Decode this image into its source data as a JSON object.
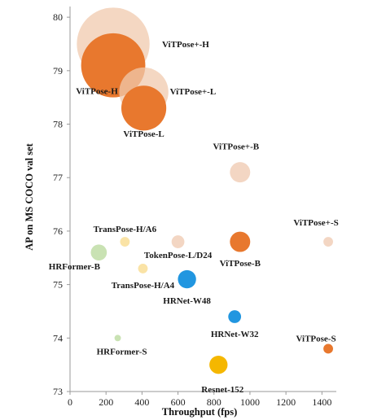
{
  "chart_data": {
    "type": "scatter",
    "xlabel": "Throughput (fps)",
    "ylabel": "AP on MS COCO val set",
    "xlim": [
      0,
      1480
    ],
    "ylim": [
      73,
      80.2
    ],
    "x_ticks": [
      0,
      200,
      400,
      600,
      800,
      1000,
      1200,
      1400
    ],
    "y_ticks": [
      73,
      74,
      75,
      76,
      77,
      78,
      79,
      80
    ],
    "grid": false,
    "legend": "none",
    "points": [
      {
        "label": "ViTPose+-H",
        "x": 240,
        "y": 79.5,
        "size": 0.68,
        "color": "#f0c9ad",
        "opacity": 0.75
      },
      {
        "label": "ViTPose-H",
        "x": 240,
        "y": 79.1,
        "size": 0.6,
        "color": "#e8782e",
        "opacity": 1
      },
      {
        "label": "ViTPose+-L",
        "x": 410,
        "y": 78.6,
        "size": 0.46,
        "color": "#f0c9ad",
        "opacity": 0.75
      },
      {
        "label": "ViTPose-L",
        "x": 410,
        "y": 78.3,
        "size": 0.42,
        "color": "#e8782e",
        "opacity": 1
      },
      {
        "label": "ViTPose+-B",
        "x": 945,
        "y": 77.1,
        "size": 0.19,
        "color": "#f2d2bc",
        "opacity": 0.9
      },
      {
        "label": "ViTPose-B",
        "x": 945,
        "y": 75.8,
        "size": 0.19,
        "color": "#e8782e",
        "opacity": 1
      },
      {
        "label": "ViTPose+-S",
        "x": 1435,
        "y": 75.8,
        "size": 0.09,
        "color": "#f2d2bc",
        "opacity": 0.9
      },
      {
        "label": "ViTPose-S",
        "x": 1435,
        "y": 73.8,
        "size": 0.09,
        "color": "#e8782e",
        "opacity": 1
      },
      {
        "label": "TransPose-H/A6",
        "x": 305,
        "y": 75.8,
        "size": 0.09,
        "color": "#fae3a6",
        "opacity": 1
      },
      {
        "label": "TransPose-H/A4",
        "x": 405,
        "y": 75.3,
        "size": 0.09,
        "color": "#fae3a6",
        "opacity": 1
      },
      {
        "label": "TokenPose-L/D24",
        "x": 600,
        "y": 75.8,
        "size": 0.12,
        "color": "#f2d2bc",
        "opacity": 0.9
      },
      {
        "label": "HRFormer-B",
        "x": 160,
        "y": 75.6,
        "size": 0.15,
        "color": "#c9e2b3",
        "opacity": 1
      },
      {
        "label": "HRFormer-S",
        "x": 265,
        "y": 74.0,
        "size": 0.06,
        "color": "#c9e2b3",
        "opacity": 1
      },
      {
        "label": "HRNet-W48",
        "x": 650,
        "y": 75.1,
        "size": 0.17,
        "color": "#2196e0",
        "opacity": 1
      },
      {
        "label": "HRNet-W32",
        "x": 915,
        "y": 74.4,
        "size": 0.12,
        "color": "#2196e0",
        "opacity": 1
      },
      {
        "label": "Resnet-152",
        "x": 825,
        "y": 73.5,
        "size": 0.17,
        "color": "#f5b700",
        "opacity": 1
      }
    ]
  }
}
